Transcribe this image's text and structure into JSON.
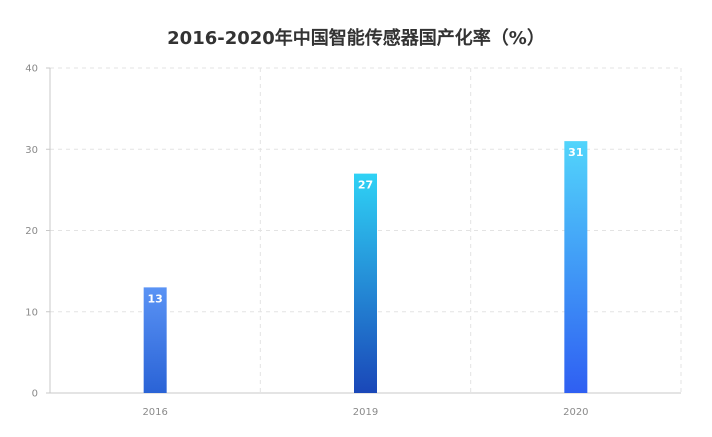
{
  "chart_data": {
    "type": "bar",
    "title": "2016-2020年中国智能传感器国产化率（%）",
    "categories": [
      "2016",
      "2019",
      "2020"
    ],
    "values": [
      13,
      27,
      31
    ],
    "data_labels": [
      "13",
      "27",
      "31"
    ],
    "ylim": [
      0,
      40
    ],
    "yticks": [
      "0",
      "10",
      "20",
      "30",
      "40"
    ],
    "grid": true,
    "legend": "none",
    "bar_gradients": [
      {
        "top": "#5a93f5",
        "bottom": "#2a63d6"
      },
      {
        "top": "#2fd2f5",
        "bottom": "#1a47b8"
      },
      {
        "top": "#52d5fb",
        "bottom": "#2f5ff2"
      }
    ]
  }
}
